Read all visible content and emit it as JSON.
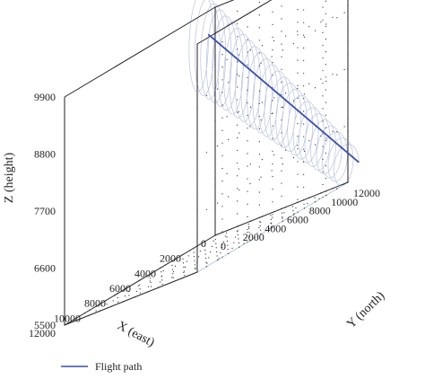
{
  "chart_data": {
    "type": "line",
    "projection": "3d",
    "xlabel": "X (east)",
    "ylabel": "Y (north)",
    "zlabel": "Z (height)",
    "xlim": [
      0,
      12000
    ],
    "ylim": [
      0,
      12000
    ],
    "zlim": [
      5500,
      9900
    ],
    "x_ticks": [
      "0",
      "2000",
      "4000",
      "6000",
      "8000",
      "10000",
      "12000"
    ],
    "y_ticks": [
      "0",
      "2000",
      "4000",
      "6000",
      "8000",
      "10000",
      "12000"
    ],
    "z_ticks": [
      "5500",
      "6600",
      "7700",
      "8800",
      "9900"
    ],
    "grid": true,
    "grid_style": "dotted",
    "legend_position": "bottom-left",
    "series": [
      {
        "name": "Flight path",
        "color": "#3a4fa8",
        "start": [
          0,
          12000,
          5800
        ],
        "end": [
          12000,
          12000,
          10000
        ],
        "loop_radius": 1000,
        "loop_count": 26
      }
    ]
  }
}
